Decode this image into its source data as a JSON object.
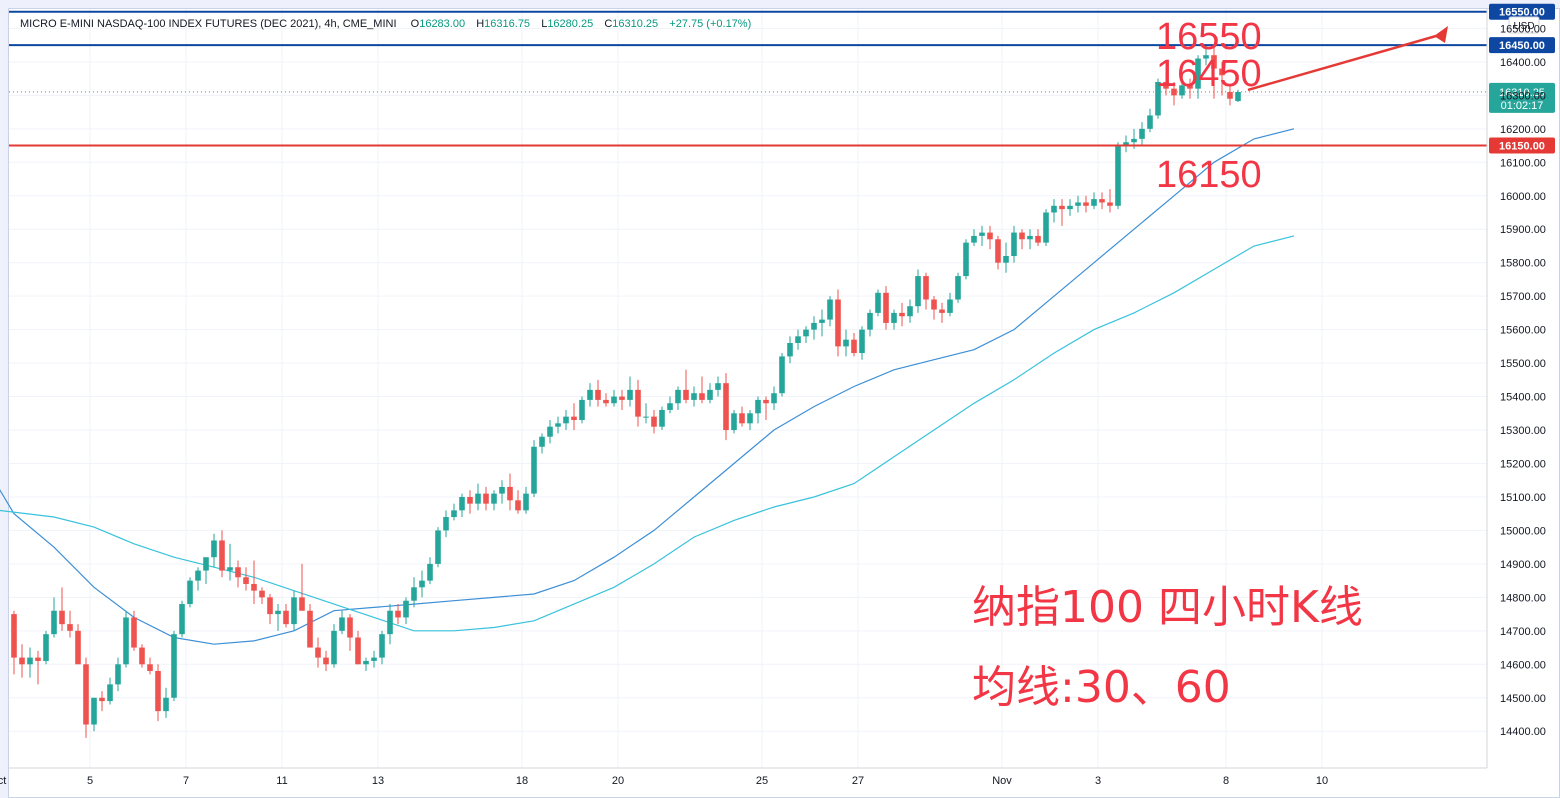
{
  "legend": {
    "symbol": "MICRO E-MINI NASDAQ-100 INDEX FUTURES (DEC 2021), 4h, CME_MINI",
    "o_label": "O",
    "o_value": "16283.00",
    "h_label": "H",
    "h_value": "16316.75",
    "l_label": "L",
    "l_value": "16280.25",
    "c_label": "C",
    "c_value": "16310.25",
    "change": "+27.75 (+0.17%)"
  },
  "currency": "USD",
  "annotations": {
    "level_16550": "16550",
    "level_16450": "16450",
    "level_16150": "16150",
    "title": "纳指100 四小时K线",
    "ma_note": "均线:30、60"
  },
  "price_tag": {
    "price": "16310.25",
    "countdown": "01:02:17"
  },
  "colors": {
    "up": "#26a69a",
    "down": "#ef5350",
    "ma30": "#3d8fd6",
    "ma60": "#39c2dc",
    "blue_level": "#0d47a1",
    "red_level": "#e53935",
    "annotation": "#f23645"
  },
  "chart_data": {
    "type": "candlestick",
    "y_axis": {
      "min": 14320,
      "max": 16570,
      "ticks": [
        "14400.00",
        "14500.00",
        "14600.00",
        "14700.00",
        "14800.00",
        "14900.00",
        "15000.00",
        "15100.00",
        "15200.00",
        "15300.00",
        "15400.00",
        "15500.00",
        "15600.00",
        "15700.00",
        "15800.00",
        "15900.00",
        "16000.00",
        "16100.00",
        "16200.00",
        "16300.00",
        "16400.00",
        "16500.00"
      ]
    },
    "x_axis": {
      "ticks": [
        {
          "label": "ct",
          "bar": -1.5
        },
        {
          "label": "5",
          "bar": 9.5
        },
        {
          "label": "7",
          "bar": 21.5
        },
        {
          "label": "11",
          "bar": 33.5
        },
        {
          "label": "13",
          "bar": 45.5
        },
        {
          "label": "18",
          "bar": 63.5
        },
        {
          "label": "20",
          "bar": 75.5
        },
        {
          "label": "25",
          "bar": 93.5
        },
        {
          "label": "27",
          "bar": 105.5
        },
        {
          "label": "Nov",
          "bar": 123.5
        },
        {
          "label": "3",
          "bar": 135.5
        },
        {
          "label": "8",
          "bar": 151.5
        },
        {
          "label": "10",
          "bar": 163.5
        }
      ]
    },
    "horizontal_levels": [
      {
        "price": 16550,
        "label": "16550.00",
        "color": "#0d47a1"
      },
      {
        "price": 16450,
        "label": "16450.00",
        "color": "#0d47a1"
      },
      {
        "price": 16150,
        "label": "16150.00",
        "color": "#e53935"
      }
    ],
    "last_price": 16310.25,
    "candles": [
      [
        14750,
        14760,
        14570,
        14620
      ],
      [
        14620,
        14660,
        14560,
        14600
      ],
      [
        14600,
        14650,
        14560,
        14620
      ],
      [
        14620,
        14640,
        14540,
        14610
      ],
      [
        14610,
        14700,
        14600,
        14690
      ],
      [
        14690,
        14800,
        14680,
        14760
      ],
      [
        14760,
        14830,
        14700,
        14720
      ],
      [
        14720,
        14760,
        14680,
        14700
      ],
      [
        14700,
        14720,
        14620,
        14600
      ],
      [
        14600,
        14620,
        14380,
        14420
      ],
      [
        14420,
        14500,
        14400,
        14500
      ],
      [
        14500,
        14520,
        14460,
        14490
      ],
      [
        14490,
        14560,
        14480,
        14540
      ],
      [
        14540,
        14620,
        14520,
        14600
      ],
      [
        14600,
        14760,
        14590,
        14740
      ],
      [
        14740,
        14760,
        14640,
        14650
      ],
      [
        14650,
        14660,
        14590,
        14600
      ],
      [
        14600,
        14620,
        14570,
        14580
      ],
      [
        14580,
        14600,
        14430,
        14460
      ],
      [
        14460,
        14530,
        14440,
        14500
      ],
      [
        14500,
        14700,
        14490,
        14690
      ],
      [
        14690,
        14790,
        14680,
        14780
      ],
      [
        14780,
        14860,
        14770,
        14850
      ],
      [
        14850,
        14890,
        14820,
        14880
      ],
      [
        14880,
        14900,
        14840,
        14920
      ],
      [
        14920,
        14990,
        14890,
        14970
      ],
      [
        14970,
        15000,
        14860,
        14880
      ],
      [
        14880,
        14960,
        14850,
        14890
      ],
      [
        14890,
        14910,
        14830,
        14860
      ],
      [
        14860,
        14890,
        14820,
        14840
      ],
      [
        14840,
        14910,
        14780,
        14820
      ],
      [
        14820,
        14830,
        14780,
        14800
      ],
      [
        14800,
        14810,
        14720,
        14750
      ],
      [
        14750,
        14780,
        14700,
        14760
      ],
      [
        14760,
        14780,
        14710,
        14720
      ],
      [
        14720,
        14820,
        14700,
        14800
      ],
      [
        14800,
        14900,
        14780,
        14760
      ],
      [
        14760,
        14780,
        14650,
        14650
      ],
      [
        14650,
        14680,
        14590,
        14620
      ],
      [
        14620,
        14640,
        14580,
        14600
      ],
      [
        14600,
        14720,
        14590,
        14700
      ],
      [
        14700,
        14760,
        14690,
        14740
      ],
      [
        14740,
        14750,
        14640,
        14680
      ],
      [
        14680,
        14700,
        14600,
        14600
      ],
      [
        14600,
        14620,
        14580,
        14610
      ],
      [
        14610,
        14640,
        14590,
        14620
      ],
      [
        14620,
        14700,
        14600,
        14690
      ],
      [
        14690,
        14780,
        14660,
        14760
      ],
      [
        14760,
        14780,
        14720,
        14740
      ],
      [
        14740,
        14800,
        14720,
        14790
      ],
      [
        14790,
        14860,
        14770,
        14830
      ],
      [
        14830,
        14880,
        14800,
        14850
      ],
      [
        14850,
        14920,
        14840,
        14900
      ],
      [
        14900,
        15010,
        14890,
        15000
      ],
      [
        15000,
        15060,
        14980,
        15040
      ],
      [
        15040,
        15080,
        15030,
        15060
      ],
      [
        15060,
        15110,
        15040,
        15100
      ],
      [
        15100,
        15120,
        15050,
        15080
      ],
      [
        15080,
        15140,
        15060,
        15110
      ],
      [
        15110,
        15130,
        15060,
        15080
      ],
      [
        15080,
        15120,
        15060,
        15110
      ],
      [
        15110,
        15150,
        15080,
        15130
      ],
      [
        15130,
        15170,
        15060,
        15090
      ],
      [
        15090,
        15120,
        15050,
        15060
      ],
      [
        15060,
        15130,
        15050,
        15110
      ],
      [
        15110,
        15270,
        15100,
        15250
      ],
      [
        15250,
        15290,
        15230,
        15280
      ],
      [
        15280,
        15330,
        15260,
        15310
      ],
      [
        15310,
        15340,
        15290,
        15320
      ],
      [
        15320,
        15360,
        15300,
        15340
      ],
      [
        15340,
        15380,
        15300,
        15330
      ],
      [
        15330,
        15400,
        15320,
        15390
      ],
      [
        15390,
        15440,
        15370,
        15420
      ],
      [
        15420,
        15450,
        15370,
        15390
      ],
      [
        15390,
        15410,
        15370,
        15380
      ],
      [
        15380,
        15420,
        15370,
        15400
      ],
      [
        15400,
        15420,
        15360,
        15390
      ],
      [
        15390,
        15460,
        15370,
        15420
      ],
      [
        15420,
        15450,
        15310,
        15340
      ],
      [
        15340,
        15380,
        15320,
        15340
      ],
      [
        15340,
        15360,
        15290,
        15310
      ],
      [
        15310,
        15370,
        15300,
        15360
      ],
      [
        15360,
        15400,
        15350,
        15380
      ],
      [
        15380,
        15430,
        15360,
        15420
      ],
      [
        15420,
        15480,
        15380,
        15390
      ],
      [
        15390,
        15430,
        15370,
        15410
      ],
      [
        15410,
        15460,
        15380,
        15390
      ],
      [
        15390,
        15440,
        15380,
        15420
      ],
      [
        15420,
        15460,
        15400,
        15440
      ],
      [
        15440,
        15470,
        15270,
        15300
      ],
      [
        15300,
        15360,
        15290,
        15350
      ],
      [
        15350,
        15370,
        15310,
        15320
      ],
      [
        15320,
        15360,
        15300,
        15350
      ],
      [
        15350,
        15400,
        15320,
        15390
      ],
      [
        15390,
        15400,
        15330,
        15380
      ],
      [
        15380,
        15430,
        15360,
        15410
      ],
      [
        15410,
        15530,
        15400,
        15520
      ],
      [
        15520,
        15580,
        15500,
        15560
      ],
      [
        15560,
        15600,
        15540,
        15580
      ],
      [
        15580,
        15610,
        15560,
        15600
      ],
      [
        15600,
        15640,
        15570,
        15620
      ],
      [
        15620,
        15660,
        15580,
        15630
      ],
      [
        15630,
        15700,
        15610,
        15690
      ],
      [
        15690,
        15720,
        15520,
        15550
      ],
      [
        15550,
        15600,
        15520,
        15570
      ],
      [
        15570,
        15590,
        15520,
        15530
      ],
      [
        15530,
        15610,
        15510,
        15600
      ],
      [
        15600,
        15660,
        15580,
        15650
      ],
      [
        15650,
        15720,
        15640,
        15710
      ],
      [
        15710,
        15730,
        15600,
        15620
      ],
      [
        15620,
        15660,
        15600,
        15650
      ],
      [
        15650,
        15680,
        15610,
        15640
      ],
      [
        15640,
        15690,
        15620,
        15670
      ],
      [
        15670,
        15780,
        15650,
        15760
      ],
      [
        15760,
        15770,
        15660,
        15690
      ],
      [
        15690,
        15700,
        15630,
        15660
      ],
      [
        15660,
        15680,
        15620,
        15650
      ],
      [
        15650,
        15710,
        15640,
        15690
      ],
      [
        15690,
        15770,
        15680,
        15760
      ],
      [
        15760,
        15870,
        15750,
        15860
      ],
      [
        15860,
        15900,
        15850,
        15880
      ],
      [
        15880,
        15910,
        15850,
        15890
      ],
      [
        15890,
        15910,
        15840,
        15870
      ],
      [
        15870,
        15880,
        15780,
        15800
      ],
      [
        15800,
        15860,
        15770,
        15820
      ],
      [
        15820,
        15910,
        15800,
        15890
      ],
      [
        15890,
        15900,
        15840,
        15870
      ],
      [
        15870,
        15900,
        15840,
        15880
      ],
      [
        15880,
        15900,
        15850,
        15860
      ],
      [
        15860,
        15960,
        15850,
        15950
      ],
      [
        15950,
        15990,
        15920,
        15970
      ],
      [
        15970,
        15990,
        15910,
        15960
      ],
      [
        15960,
        15990,
        15940,
        15970
      ],
      [
        15970,
        16000,
        15950,
        15980
      ],
      [
        15980,
        16000,
        15950,
        15970
      ],
      [
        15970,
        16010,
        15960,
        15990
      ],
      [
        15990,
        16010,
        15960,
        15980
      ],
      [
        15980,
        16020,
        15950,
        15970
      ],
      [
        15970,
        16160,
        15960,
        16150
      ],
      [
        16150,
        16180,
        16130,
        16160
      ],
      [
        16160,
        16200,
        16140,
        16170
      ],
      [
        16170,
        16220,
        16150,
        16200
      ],
      [
        16200,
        16260,
        16190,
        16240
      ],
      [
        16240,
        16350,
        16230,
        16340
      ],
      [
        16340,
        16370,
        16300,
        16320
      ],
      [
        16320,
        16340,
        16270,
        16300
      ],
      [
        16300,
        16350,
        16290,
        16330
      ],
      [
        16330,
        16350,
        16290,
        16320
      ],
      [
        16320,
        16420,
        16290,
        16410
      ],
      [
        16410,
        16450,
        16390,
        16420
      ],
      [
        16420,
        16450,
        16290,
        16380
      ],
      [
        16380,
        16400,
        16300,
        16360
      ],
      [
        16310,
        16330,
        16270,
        16290
      ],
      [
        16283,
        16317,
        16280,
        16310
      ]
    ],
    "ma30": [
      [
        -2,
        15130
      ],
      [
        0,
        15050
      ],
      [
        5,
        14950
      ],
      [
        10,
        14830
      ],
      [
        15,
        14740
      ],
      [
        20,
        14680
      ],
      [
        25,
        14660
      ],
      [
        30,
        14670
      ],
      [
        35,
        14700
      ],
      [
        40,
        14760
      ],
      [
        45,
        14770
      ],
      [
        50,
        14780
      ],
      [
        55,
        14790
      ],
      [
        60,
        14800
      ],
      [
        65,
        14810
      ],
      [
        70,
        14850
      ],
      [
        75,
        14920
      ],
      [
        80,
        15000
      ],
      [
        85,
        15100
      ],
      [
        90,
        15200
      ],
      [
        95,
        15300
      ],
      [
        100,
        15370
      ],
      [
        105,
        15430
      ],
      [
        110,
        15480
      ],
      [
        115,
        15510
      ],
      [
        120,
        15540
      ],
      [
        125,
        15600
      ],
      [
        130,
        15700
      ],
      [
        135,
        15800
      ],
      [
        140,
        15900
      ],
      [
        145,
        16000
      ],
      [
        150,
        16100
      ],
      [
        155,
        16170
      ],
      [
        160,
        16200
      ]
    ],
    "ma60": [
      [
        -2,
        15060
      ],
      [
        5,
        15040
      ],
      [
        10,
        15010
      ],
      [
        15,
        14960
      ],
      [
        20,
        14920
      ],
      [
        25,
        14890
      ],
      [
        30,
        14860
      ],
      [
        35,
        14820
      ],
      [
        40,
        14780
      ],
      [
        45,
        14740
      ],
      [
        50,
        14700
      ],
      [
        55,
        14700
      ],
      [
        60,
        14710
      ],
      [
        65,
        14730
      ],
      [
        70,
        14780
      ],
      [
        75,
        14830
      ],
      [
        80,
        14900
      ],
      [
        85,
        14980
      ],
      [
        90,
        15030
      ],
      [
        95,
        15070
      ],
      [
        100,
        15100
      ],
      [
        105,
        15140
      ],
      [
        110,
        15220
      ],
      [
        115,
        15300
      ],
      [
        120,
        15380
      ],
      [
        125,
        15450
      ],
      [
        130,
        15530
      ],
      [
        135,
        15600
      ],
      [
        140,
        15650
      ],
      [
        145,
        15710
      ],
      [
        150,
        15780
      ],
      [
        155,
        15850
      ],
      [
        160,
        15880
      ]
    ]
  }
}
